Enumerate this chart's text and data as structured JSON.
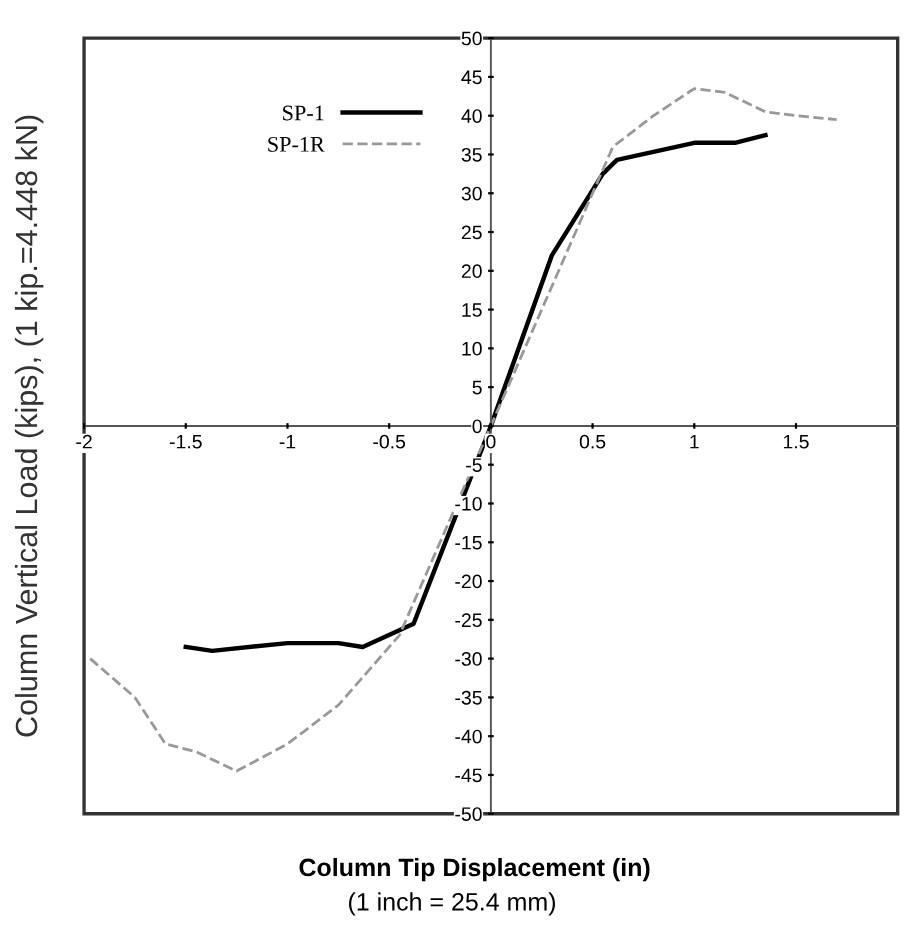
{
  "chart_data": {
    "type": "line",
    "xlabel": "Column Tip Displacement (in)",
    "ylabel": "Column Vertical Load (kips), (1 kip.=4.448 kN)",
    "annotations": [
      "(1 inch = 25.4 mm)"
    ],
    "xlim": [
      -2,
      2
    ],
    "ylim": [
      -50,
      50
    ],
    "xticks": [
      -2,
      -1.5,
      -1,
      -0.5,
      0,
      0.5,
      1,
      1.5
    ],
    "yticks": [
      -50,
      -45,
      -40,
      -35,
      -30,
      -25,
      -20,
      -15,
      -10,
      -5,
      0,
      5,
      10,
      15,
      20,
      25,
      30,
      35,
      40,
      45,
      50
    ],
    "grid": false,
    "legend": "top left",
    "marker": "none",
    "series": [
      {
        "name": "SP-1",
        "color": "#000000",
        "line_style": "solid",
        "x": [
          -1.5,
          -1.37,
          -1,
          -0.75,
          -0.63,
          -0.38,
          0,
          0.3,
          0.55,
          0.62,
          1,
          1.2,
          1.35
        ],
        "values": [
          -28.5,
          -29,
          -28,
          -28,
          -28.5,
          -25.5,
          0,
          22,
          32.5,
          34.3,
          36.5,
          36.5,
          37.5
        ]
      },
      {
        "name": "SP-1R",
        "color": "#999999",
        "line_style": "dashed",
        "x": [
          -1.97,
          -1.75,
          -1.6,
          -1.45,
          -1.25,
          -1,
          -0.75,
          -0.45,
          -0.3,
          0,
          0.25,
          0.6,
          0.8,
          1,
          1.15,
          1.35,
          1.5,
          1.7
        ],
        "values": [
          -30,
          -35,
          -41,
          -42,
          -44.5,
          -41,
          -36,
          -27,
          -18,
          0,
          15,
          36,
          40,
          43.5,
          43,
          40.5,
          40,
          39.5
        ]
      }
    ]
  }
}
